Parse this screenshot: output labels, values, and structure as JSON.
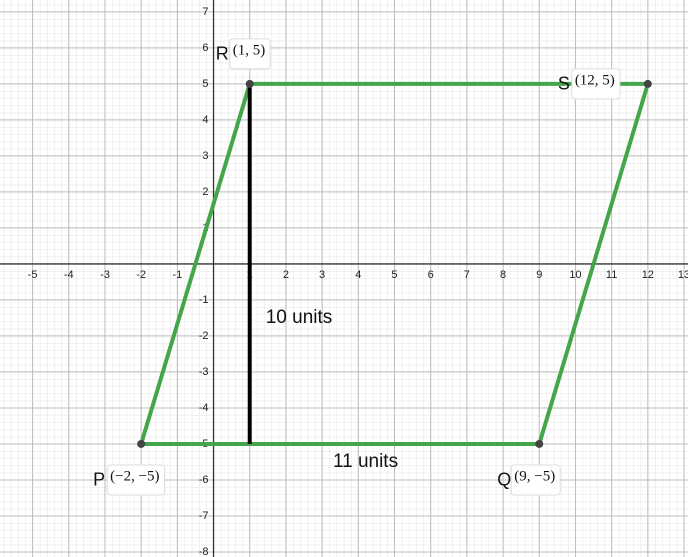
{
  "chart_data": {
    "type": "line",
    "xlim": [
      -5.9,
      13.11
    ],
    "ylim": [
      -8.14,
      7.33
    ],
    "xticks": [
      -5,
      -4,
      -3,
      -2,
      -1,
      1,
      2,
      3,
      4,
      5,
      6,
      7,
      8,
      9,
      10,
      11,
      12,
      13
    ],
    "yticks": [
      -8,
      -7,
      -6,
      -5,
      -4,
      -3,
      -2,
      -1,
      1,
      2,
      3,
      4,
      5,
      6,
      7
    ],
    "grid": true,
    "series": [
      {
        "color": "#44a54b",
        "x": [
          -2,
          9,
          12,
          1,
          -2
        ],
        "values": [
          -5,
          -5,
          5,
          5,
          -5
        ]
      },
      {
        "color": "#000000",
        "x": [
          1,
          1
        ],
        "values": [
          5,
          -5
        ]
      }
    ],
    "points": [
      {
        "label": "P",
        "coord": "(−2, −5)",
        "x": -2,
        "y": -5
      },
      {
        "label": "Q",
        "coord": "(9, −5)",
        "x": 9,
        "y": -5
      },
      {
        "label": "S",
        "coord": "(12, 5)",
        "x": 12,
        "y": 5
      },
      {
        "label": "R",
        "coord": "(1, 5)",
        "x": 1,
        "y": 5
      }
    ],
    "annotations": [
      "10 units",
      "11 units"
    ]
  }
}
